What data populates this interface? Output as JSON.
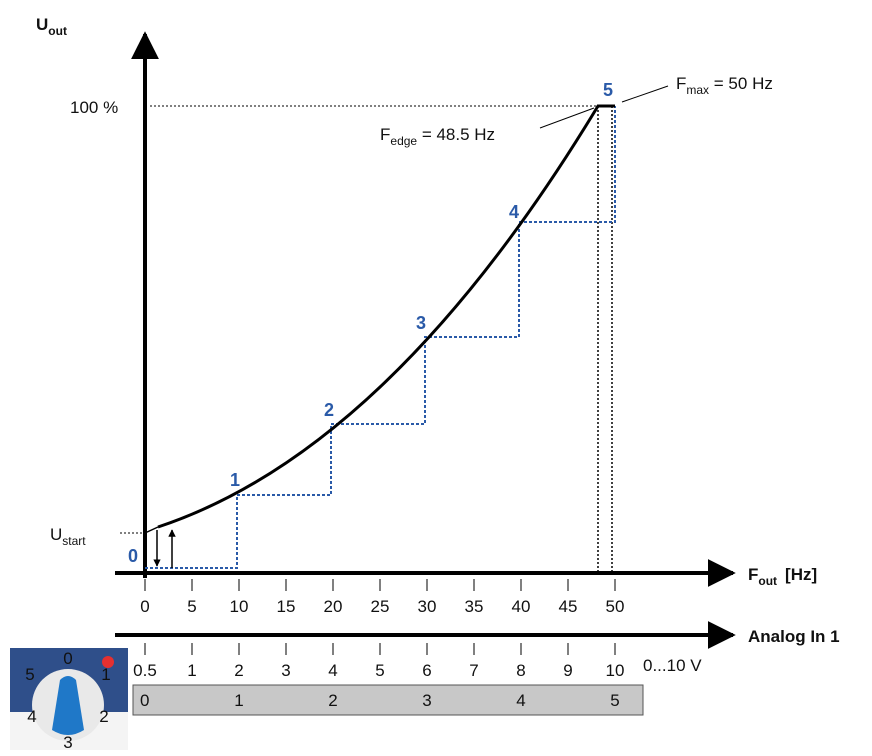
{
  "y_axis": {
    "label": "U",
    "label_sub": "out",
    "tick_100": "100 %",
    "u_start": "U",
    "u_start_sub": "start"
  },
  "x_axis": {
    "label": "F",
    "label_sub": "out",
    "unit": "[Hz]",
    "ticks": [
      "0",
      "5",
      "10",
      "15",
      "20",
      "25",
      "30",
      "35",
      "40",
      "45",
      "50"
    ]
  },
  "analog_axis": {
    "label": "Analog In 1",
    "ticks": [
      "0.5",
      "1",
      "2",
      "3",
      "4",
      "5",
      "6",
      "7",
      "8",
      "9",
      "10"
    ],
    "range_label": "0...10 V"
  },
  "points": [
    "0",
    "1",
    "2",
    "3",
    "4",
    "5"
  ],
  "selector_bar": [
    "0",
    "1",
    "2",
    "3",
    "4",
    "5"
  ],
  "annotations": {
    "f_edge": "F",
    "f_edge_sub": "edge",
    "f_edge_value": " = 48.5 Hz",
    "f_max": "F",
    "f_max_sub": "max",
    "f_max_value": " = 50 Hz"
  },
  "knob": {
    "labels": [
      "0",
      "1",
      "2",
      "3",
      "4",
      "5"
    ]
  }
}
